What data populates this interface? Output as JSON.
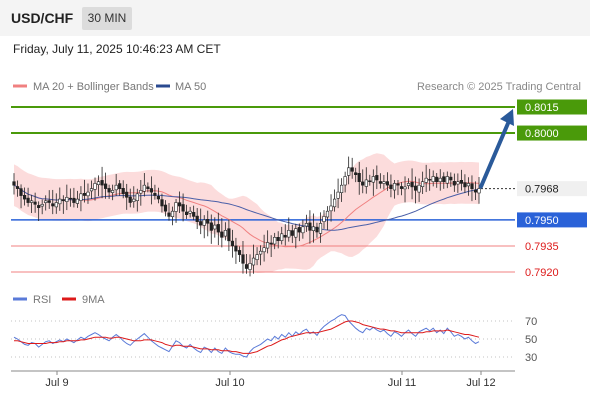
{
  "header": {
    "symbol": "USD/CHF",
    "timeframe": "30 MIN"
  },
  "datetime": "Friday, July 11, 2025 10:46:23 AM CET",
  "legend": {
    "ma20_bb": "MA 20 + Bollinger Bands",
    "ma50": "MA 50",
    "source": "Research © 2025 Trading Central"
  },
  "rsi_legend": {
    "rsi": "RSI",
    "ma9": "9MA"
  },
  "colors": {
    "green_level": "#4a9a0a",
    "blue_level": "#2a62d8",
    "red_level": "#f08080",
    "bollinger_fill": "#fcd6d6",
    "ma20": "#f08080",
    "ma50": "#4a5fa8",
    "rsi": "#5a7ad8",
    "rsi_ma": "#dd1a1a",
    "arrow": "#2a5a9a",
    "candle": "#222222"
  },
  "chart_data": [
    {
      "type": "candlestick",
      "categories": [
        "Jul 9",
        "Jul 10",
        "Jul 11",
        "Jul 12"
      ],
      "ylim": [
        0.7914,
        0.8026
      ],
      "price_levels": [
        {
          "value": 0.8015,
          "label": "0.8015",
          "kind": "resistance"
        },
        {
          "value": 0.8,
          "label": "0.8000",
          "kind": "resistance"
        },
        {
          "value": 0.7968,
          "label": "0.7968",
          "kind": "current"
        },
        {
          "value": 0.795,
          "label": "0.7950",
          "kind": "pivot"
        },
        {
          "value": 0.7935,
          "label": "0.7935",
          "kind": "support"
        },
        {
          "value": 0.792,
          "label": "0.7920",
          "kind": "support"
        }
      ],
      "close_series": [
        0.797,
        0.7968,
        0.7964,
        0.7962,
        0.796,
        0.7961,
        0.7959,
        0.7957,
        0.7959,
        0.7961,
        0.796,
        0.7958,
        0.796,
        0.7962,
        0.7961,
        0.7963,
        0.7962,
        0.796,
        0.7962,
        0.7965,
        0.7964,
        0.7966,
        0.7968,
        0.7971,
        0.7972,
        0.797,
        0.7968,
        0.7966,
        0.7967,
        0.797,
        0.7968,
        0.7965,
        0.7963,
        0.796,
        0.7962,
        0.7965,
        0.7967,
        0.797,
        0.7968,
        0.7966,
        0.7964,
        0.7962,
        0.7958,
        0.7955,
        0.7952,
        0.7955,
        0.796,
        0.7958,
        0.7955,
        0.7953,
        0.7955,
        0.7952,
        0.7949,
        0.7947,
        0.795,
        0.7948,
        0.7944,
        0.7947,
        0.7943,
        0.794,
        0.7944,
        0.7938,
        0.7935,
        0.7932,
        0.793,
        0.7925,
        0.7922,
        0.7925,
        0.7928,
        0.793,
        0.7932,
        0.7934,
        0.7937,
        0.7936,
        0.794,
        0.7938,
        0.7942,
        0.794,
        0.7944,
        0.7941,
        0.7945,
        0.7943,
        0.7946,
        0.7948,
        0.7944,
        0.7946,
        0.7943,
        0.7948,
        0.7952,
        0.7955,
        0.7958,
        0.7962,
        0.7966,
        0.797,
        0.7975,
        0.798,
        0.7978,
        0.7976,
        0.7972,
        0.797,
        0.7973,
        0.7972,
        0.7975,
        0.7973,
        0.7971,
        0.7972,
        0.797,
        0.7968,
        0.7971,
        0.797,
        0.7968,
        0.7969,
        0.7971,
        0.7969,
        0.7967,
        0.797,
        0.7972,
        0.7974,
        0.7973,
        0.7975,
        0.7972,
        0.7974,
        0.7972,
        0.7975,
        0.7973,
        0.797,
        0.7972,
        0.7971,
        0.7969,
        0.7971,
        0.7968,
        0.7966,
        0.7968
      ],
      "forecast_target": 0.8015
    },
    {
      "type": "line",
      "title": "RSI",
      "series_labels": [
        "RSI",
        "9MA"
      ],
      "yticks": [
        70,
        50,
        30
      ],
      "ylim": [
        20,
        80
      ],
      "rsi": [
        52,
        50,
        47,
        44,
        43,
        46,
        45,
        41,
        44,
        47,
        48,
        45,
        47,
        49,
        47,
        50,
        48,
        46,
        49,
        52,
        50,
        53,
        55,
        57,
        55,
        52,
        50,
        48,
        52,
        55,
        52,
        48,
        45,
        43,
        47,
        50,
        53,
        56,
        52,
        48,
        45,
        42,
        40,
        38,
        36,
        42,
        48,
        46,
        42,
        40,
        44,
        40,
        37,
        35,
        41,
        39,
        35,
        40,
        36,
        34,
        40,
        36,
        34,
        33,
        33,
        31,
        30,
        36,
        40,
        42,
        44,
        47,
        50,
        48,
        53,
        50,
        55,
        52,
        57,
        53,
        58,
        55,
        59,
        61,
        56,
        58,
        54,
        60,
        64,
        67,
        70,
        72,
        75,
        77,
        76,
        70,
        66,
        62,
        59,
        57,
        62,
        60,
        63,
        60,
        58,
        60,
        56,
        53,
        58,
        56,
        53,
        57,
        60,
        56,
        53,
        58,
        60,
        62,
        59,
        62,
        57,
        60,
        56,
        62,
        58,
        53,
        55,
        53,
        50,
        52,
        48,
        45,
        47
      ],
      "rsi_ma": [
        48,
        48,
        47,
        46,
        45,
        45,
        45,
        45,
        45,
        45,
        46,
        46,
        46,
        47,
        47,
        48,
        48,
        48,
        48,
        49,
        49,
        50,
        51,
        52,
        52,
        52,
        52,
        51,
        51,
        52,
        52,
        51,
        50,
        49,
        48,
        48,
        48,
        49,
        49,
        49,
        48,
        47,
        46,
        44,
        43,
        42,
        43,
        43,
        42,
        42,
        42,
        41,
        40,
        39,
        39,
        39,
        38,
        38,
        38,
        37,
        37,
        37,
        36,
        36,
        35,
        34,
        34,
        34,
        35,
        36,
        38,
        40,
        42,
        43,
        45,
        47,
        49,
        50,
        52,
        53,
        54,
        55,
        56,
        57,
        57,
        57,
        57,
        58,
        59,
        60,
        61,
        63,
        65,
        67,
        69,
        70,
        70,
        69,
        68,
        66,
        65,
        64,
        63,
        62,
        61,
        61,
        60,
        59,
        59,
        58,
        57,
        57,
        57,
        57,
        57,
        57,
        57,
        58,
        58,
        59,
        59,
        59,
        59,
        60,
        59,
        58,
        57,
        56,
        55,
        55,
        54,
        53,
        52
      ]
    }
  ],
  "xaxis_labels": [
    "Jul 9",
    "Jul 10",
    "Jul 11",
    "Jul 12"
  ]
}
